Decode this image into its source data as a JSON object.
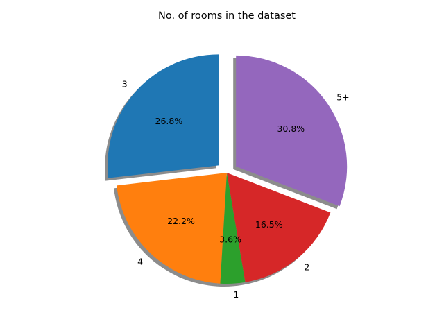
{
  "chart_data": {
    "type": "pie",
    "title": "No. of rooms in the dataset",
    "start_angle_deg": 90,
    "direction": "counterclockwise",
    "shadow": true,
    "slices": [
      {
        "label": "3",
        "value": 26.8,
        "pct_label": "26.8%",
        "color": "#1f77b4",
        "exploded": true
      },
      {
        "label": "4",
        "value": 22.2,
        "pct_label": "22.2%",
        "color": "#ff7f0e",
        "exploded": false
      },
      {
        "label": "1",
        "value": 3.6,
        "pct_label": "3.6%",
        "color": "#2ca02c",
        "exploded": false
      },
      {
        "label": "2",
        "value": 16.5,
        "pct_label": "16.5%",
        "color": "#d62728",
        "exploded": false
      },
      {
        "label": "5+",
        "value": 30.8,
        "pct_label": "30.8%",
        "color": "#9467bd",
        "exploded": true
      }
    ]
  }
}
